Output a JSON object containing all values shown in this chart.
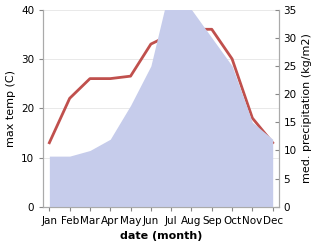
{
  "months": [
    "Jan",
    "Feb",
    "Mar",
    "Apr",
    "May",
    "Jun",
    "Jul",
    "Aug",
    "Sep",
    "Oct",
    "Nov",
    "Dec"
  ],
  "temperature": [
    13,
    22,
    26,
    26,
    26.5,
    33,
    35,
    36,
    36,
    30,
    18,
    13
  ],
  "precipitation": [
    9,
    9,
    10,
    12,
    18,
    25,
    40,
    35,
    30,
    25,
    15,
    12
  ],
  "temp_color": "#c0504d",
  "precip_color_fill": "#c6cceb",
  "temp_ylim": [
    0,
    40
  ],
  "precip_ylim": [
    0,
    35
  ],
  "temp_yticks": [
    0,
    10,
    20,
    30,
    40
  ],
  "precip_yticks": [
    0,
    5,
    10,
    15,
    20,
    25,
    30,
    35
  ],
  "xlabel": "date (month)",
  "ylabel_left": "max temp (C)",
  "ylabel_right": "med. precipitation (kg/m2)",
  "background_color": "#ffffff",
  "label_fontsize": 8,
  "tick_fontsize": 7.5
}
